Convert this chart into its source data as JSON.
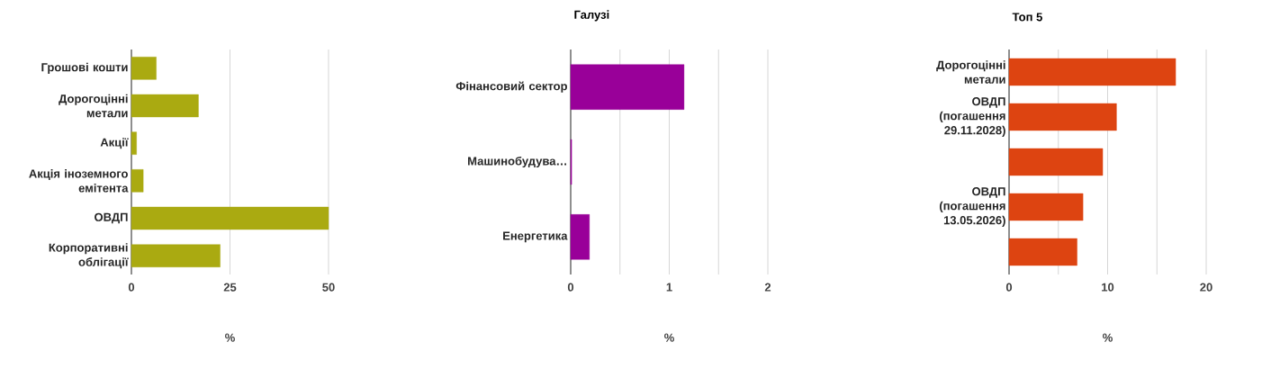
{
  "chart_data": [
    {
      "type": "bar",
      "orientation": "horizontal",
      "xlabel": "%",
      "categories": [
        "Грошові кошти",
        "Дорогоцінні метали",
        "Акції",
        "Акція іноземного емітента",
        "ОВДП",
        "Корпоративні облігації"
      ],
      "values": [
        6.3,
        17,
        1.3,
        3,
        50,
        22.5
      ],
      "color": "#aaaa11",
      "xlim": [
        0,
        50
      ],
      "xticks": [
        0,
        25,
        50
      ],
      "grid": "x"
    },
    {
      "type": "bar",
      "orientation": "horizontal",
      "title": "Галузі",
      "xlabel": "%",
      "categories": [
        "Фінансовий сектор",
        "Машинобудува…",
        "Енергетика"
      ],
      "values": [
        1.15,
        0.01,
        0.19
      ],
      "color": "#990099",
      "xlim": [
        0,
        2
      ],
      "xticks": [
        0,
        {
          "value": 0.5,
          "label": null
        },
        1,
        {
          "value": 1.5,
          "label": null
        },
        2
      ],
      "grid": "x"
    },
    {
      "type": "bar",
      "orientation": "horizontal",
      "title": "Топ 5",
      "xlabel": "%",
      "categories": [
        "Дорогоцінні метали",
        "ОВДП (погашення 29.11.2028)",
        null,
        "ОВДП (погашення 13.05.2026)",
        null
      ],
      "values": [
        16.9,
        10.9,
        9.5,
        7.5,
        6.9
      ],
      "color": "#dd4411",
      "xlim": [
        0,
        20
      ],
      "xticks": [
        0,
        {
          "value": 5,
          "label": null
        },
        10,
        {
          "value": 15,
          "label": null
        },
        20
      ],
      "grid": "x"
    }
  ]
}
